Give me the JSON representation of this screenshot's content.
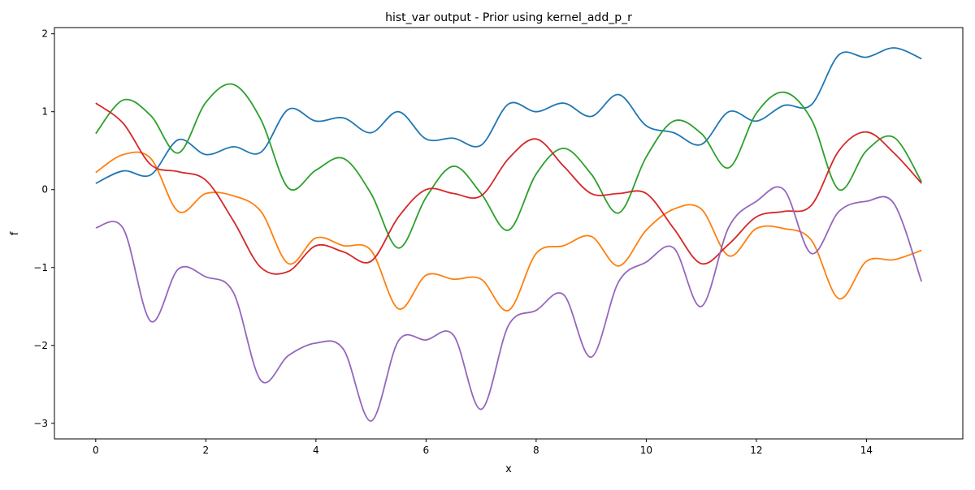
{
  "chart_data": {
    "type": "line",
    "title": "hist_var output - Prior using kernel_add_p_r",
    "xlabel": "x",
    "ylabel": "f",
    "xlim": [
      -0.75,
      15.75
    ],
    "ylim": [
      -3.2,
      2.08
    ],
    "xticks": [
      0,
      2,
      4,
      6,
      8,
      10,
      12,
      14
    ],
    "xtick_labels": [
      "0",
      "2",
      "4",
      "6",
      "8",
      "10",
      "12",
      "14"
    ],
    "yticks": [
      2,
      1,
      0,
      -1,
      -2,
      -3
    ],
    "ytick_labels": [
      "2",
      "1",
      "0",
      "−1",
      "−2",
      "−3"
    ],
    "grid": false,
    "legend": "none",
    "x": [
      0,
      0.5,
      1,
      1.5,
      2,
      2.5,
      3,
      3.5,
      4,
      4.5,
      5,
      5.5,
      6,
      6.5,
      7,
      7.5,
      8,
      8.5,
      9,
      9.5,
      10,
      10.5,
      11,
      11.5,
      12,
      12.5,
      13,
      13.5,
      14,
      14.5,
      15
    ],
    "series": [
      {
        "color": "#1f77b4",
        "values": [
          0.08,
          0.24,
          0.19,
          0.64,
          0.45,
          0.55,
          0.48,
          1.03,
          0.88,
          0.92,
          0.73,
          1.0,
          0.65,
          0.66,
          0.57,
          1.1,
          1.0,
          1.11,
          0.94,
          1.22,
          0.82,
          0.73,
          0.58,
          1.0,
          0.88,
          1.08,
          1.09,
          1.73,
          1.7,
          1.82,
          1.68
        ]
      },
      {
        "color": "#ff7f0e",
        "values": [
          0.22,
          0.45,
          0.4,
          -0.28,
          -0.05,
          -0.08,
          -0.28,
          -0.95,
          -0.62,
          -0.72,
          -0.78,
          -1.53,
          -1.1,
          -1.15,
          -1.15,
          -1.55,
          -0.82,
          -0.72,
          -0.6,
          -0.98,
          -0.52,
          -0.25,
          -0.25,
          -0.85,
          -0.5,
          -0.5,
          -0.65,
          -1.4,
          -0.92,
          -0.9,
          -0.78
        ]
      },
      {
        "color": "#2ca02c",
        "values": [
          0.72,
          1.15,
          0.95,
          0.47,
          1.12,
          1.35,
          0.9,
          0.02,
          0.25,
          0.4,
          -0.05,
          -0.75,
          -0.1,
          0.3,
          -0.05,
          -0.52,
          0.2,
          0.53,
          0.2,
          -0.3,
          0.42,
          0.88,
          0.72,
          0.28,
          0.98,
          1.25,
          0.9,
          0.0,
          0.5,
          0.67,
          0.1
        ]
      },
      {
        "color": "#d62728",
        "values": [
          1.11,
          0.85,
          0.32,
          0.23,
          0.12,
          -0.4,
          -1.0,
          -1.05,
          -0.72,
          -0.8,
          -0.92,
          -0.35,
          0.0,
          -0.05,
          -0.08,
          0.4,
          0.65,
          0.3,
          -0.05,
          -0.05,
          -0.05,
          -0.5,
          -0.95,
          -0.7,
          -0.35,
          -0.28,
          -0.2,
          0.5,
          0.74,
          0.47,
          0.08
        ]
      },
      {
        "color": "#9467bd",
        "values": [
          -0.49,
          -0.5,
          -1.69,
          -1.02,
          -1.12,
          -1.32,
          -2.45,
          -2.13,
          -1.97,
          -2.05,
          -2.97,
          -1.94,
          -1.93,
          -1.87,
          -2.82,
          -1.74,
          -1.55,
          -1.35,
          -2.15,
          -1.18,
          -0.93,
          -0.75,
          -1.5,
          -0.48,
          -0.15,
          0.0,
          -0.82,
          -0.28,
          -0.15,
          -0.18,
          -1.18
        ]
      }
    ]
  }
}
